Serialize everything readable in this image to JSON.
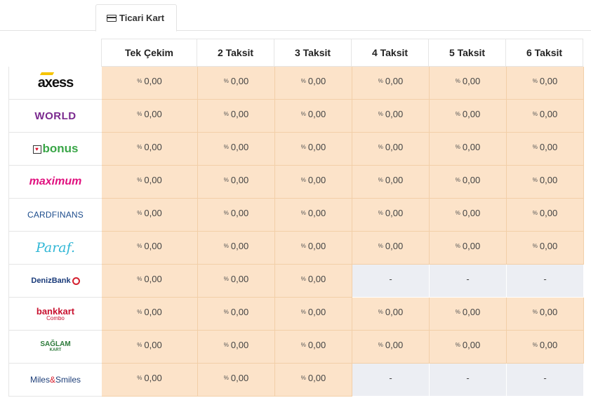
{
  "tabs": [
    {
      "label": "",
      "active": false
    },
    {
      "label": "Ticari Kart",
      "active": true,
      "icon": "credit-card-icon"
    },
    {
      "label": "",
      "active": false
    }
  ],
  "table": {
    "columns": [
      "Tek Çekim",
      "2 Taksit",
      "3 Taksit",
      "4 Taksit",
      "5 Taksit",
      "6 Taksit"
    ],
    "percent_symbol": "%",
    "rows": [
      {
        "bank": "axess",
        "logo_text": "axess",
        "values": [
          "0,00",
          "0,00",
          "0,00",
          "0,00",
          "0,00",
          "0,00"
        ]
      },
      {
        "bank": "world",
        "logo_text": "WORLD",
        "values": [
          "0,00",
          "0,00",
          "0,00",
          "0,00",
          "0,00",
          "0,00"
        ]
      },
      {
        "bank": "bonus",
        "logo_text": "bonus",
        "values": [
          "0,00",
          "0,00",
          "0,00",
          "0,00",
          "0,00",
          "0,00"
        ]
      },
      {
        "bank": "maximum",
        "logo_text": "maximum",
        "values": [
          "0,00",
          "0,00",
          "0,00",
          "0,00",
          "0,00",
          "0,00"
        ]
      },
      {
        "bank": "cardfinans",
        "logo_text": "CARDFINANS",
        "values": [
          "0,00",
          "0,00",
          "0,00",
          "0,00",
          "0,00",
          "0,00"
        ]
      },
      {
        "bank": "paraf",
        "logo_text": "Paraf.",
        "values": [
          "0,00",
          "0,00",
          "0,00",
          "0,00",
          "0,00",
          "0,00"
        ]
      },
      {
        "bank": "denizbank",
        "logo_text": "DenizBank",
        "values": [
          "0,00",
          "0,00",
          "0,00",
          "-",
          "-",
          "-"
        ]
      },
      {
        "bank": "bankkart",
        "logo_text": "bankkart",
        "logo_sub": "Combo",
        "values": [
          "0,00",
          "0,00",
          "0,00",
          "0,00",
          "0,00",
          "0,00"
        ]
      },
      {
        "bank": "saglam-kart",
        "logo_text": "SAĞLAM",
        "logo_sub": "KART",
        "values": [
          "0,00",
          "0,00",
          "0,00",
          "0,00",
          "0,00",
          "0,00"
        ]
      },
      {
        "bank": "miles-smiles",
        "logo_text": "Miles&Smiles",
        "values": [
          "0,00",
          "0,00",
          "0,00",
          "-",
          "-",
          "-"
        ]
      }
    ]
  },
  "colors": {
    "cell_filled": "#fce3c9",
    "cell_empty": "#eceef3"
  }
}
